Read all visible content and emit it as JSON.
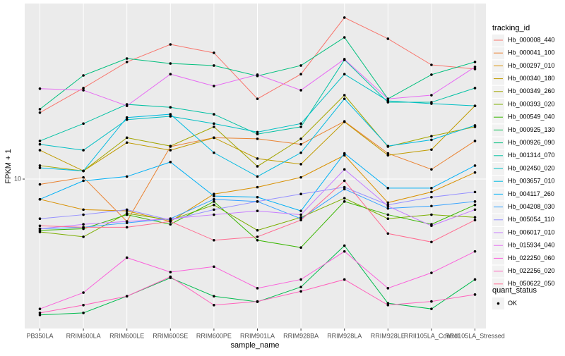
{
  "chart_data": {
    "type": "line",
    "log_y": true,
    "grid": true,
    "x_label": "sample_name",
    "y_label": "FPKM + 1",
    "legend_title": "tracking_id",
    "legend_position": "right",
    "point_legend_title": "quant_status",
    "point_legend_label": "OK",
    "point_color": "#000000",
    "categories": [
      "PB350LA",
      "RRIM600LA",
      "RRIM600LE",
      "RRIM600SE",
      "RRIM600PE",
      "RRIM901LA",
      "RRIM928BA",
      "RRIM928LA",
      "RRIM928LE",
      "RRII105LA_Control",
      "RRII105LA_Stressed"
    ],
    "ylim": [
      1.75,
      77.5
    ],
    "yticks": [
      10
    ],
    "series": [
      {
        "name": "Hb_000008_440",
        "color": "#F8766D",
        "values": [
          21.7,
          28.9,
          39.2,
          48.1,
          43.6,
          25.5,
          34.0,
          65.8,
          51.4,
          37.9,
          36.1
        ]
      },
      {
        "name": "Hb_000041_100",
        "color": "#EA8331",
        "values": [
          9.4,
          10.2,
          6.1,
          14.6,
          16.2,
          16.0,
          15.0,
          19.6,
          13.5,
          11.2,
          15.6
        ]
      },
      {
        "name": "Hb_000297_010",
        "color": "#D89000",
        "values": [
          7.9,
          7.0,
          6.9,
          6.1,
          8.4,
          9.1,
          10.2,
          13.2,
          7.6,
          8.6,
          10.8
        ]
      },
      {
        "name": "Hb_000340_180",
        "color": "#C09B00",
        "values": [
          14.0,
          11.0,
          15.3,
          14.0,
          16.2,
          12.7,
          11.9,
          19.5,
          13.2,
          14.1,
          23.5
        ]
      },
      {
        "name": "Hb_000349_260",
        "color": "#A3A500",
        "values": [
          11.7,
          11.0,
          16.2,
          14.7,
          18.4,
          11.6,
          16.0,
          26.6,
          14.6,
          16.5,
          18.4
        ]
      },
      {
        "name": "Hb_000393_020",
        "color": "#7CAE00",
        "values": [
          5.4,
          5.1,
          6.7,
          6.2,
          7.4,
          5.5,
          6.4,
          8.0,
          6.3,
          6.6,
          6.4
        ]
      },
      {
        "name": "Hb_000549_040",
        "color": "#39B600",
        "values": [
          5.5,
          5.6,
          6.6,
          5.9,
          7.7,
          4.9,
          4.5,
          7.7,
          6.6,
          5.9,
          7.4
        ]
      },
      {
        "name": "Hb_000925_130",
        "color": "#00BB4E",
        "values": [
          2.05,
          2.1,
          2.55,
          3.16,
          2.55,
          2.39,
          2.84,
          4.6,
          2.35,
          2.2,
          3.1
        ]
      },
      {
        "name": "Hb_000926_090",
        "color": "#00BF7D",
        "values": [
          22.6,
          33.5,
          40.8,
          38.5,
          37.6,
          33.3,
          37.6,
          52.2,
          25.5,
          33.8,
          39.2
        ]
      },
      {
        "name": "Hb_001314_070",
        "color": "#00C1A3",
        "values": [
          15.6,
          19.1,
          23.9,
          23.1,
          21.3,
          16.9,
          18.4,
          40.2,
          24.5,
          24.5,
          28.9
        ]
      },
      {
        "name": "Hb_002450_020",
        "color": "#00BFC4",
        "values": [
          15.0,
          14.0,
          20.0,
          20.8,
          19.1,
          17.3,
          19.1,
          34.0,
          24.9,
          24.1,
          23.5
        ]
      },
      {
        "name": "Hb_003657_010",
        "color": "#00BAE0",
        "values": [
          11.4,
          11.0,
          20.5,
          21.3,
          13.6,
          10.3,
          13.6,
          25.5,
          14.7,
          15.8,
          18.7
        ]
      },
      {
        "name": "Hb_004117_260",
        "color": "#00B0F6",
        "values": [
          7.9,
          9.8,
          10.3,
          12.2,
          8.2,
          8.1,
          6.9,
          13.5,
          9.0,
          9.0,
          11.7
        ]
      },
      {
        "name": "Hb_004208_030",
        "color": "#35A2FF",
        "values": [
          5.6,
          5.7,
          6.0,
          6.3,
          7.9,
          7.7,
          6.3,
          8.9,
          7.1,
          7.3,
          7.7
        ]
      },
      {
        "name": "Hb_005054_110",
        "color": "#9590FF",
        "values": [
          6.3,
          6.6,
          7.0,
          6.2,
          7.0,
          7.7,
          8.4,
          9.1,
          7.4,
          8.1,
          8.6
        ]
      },
      {
        "name": "Hb_006017_010",
        "color": "#C77CFF",
        "values": [
          5.6,
          5.9,
          6.1,
          6.3,
          6.6,
          6.9,
          6.6,
          11.2,
          7.3,
          5.8,
          7.0
        ]
      },
      {
        "name": "Hb_015934_040",
        "color": "#E76BF3",
        "values": [
          28.7,
          28.2,
          23.5,
          34.0,
          29.6,
          33.8,
          28.2,
          40.5,
          25.5,
          26.6,
          37.0
        ]
      },
      {
        "name": "Hb_022250_060",
        "color": "#FA62DB",
        "values": [
          2.2,
          2.66,
          4.0,
          3.38,
          3.6,
          2.8,
          3.1,
          4.3,
          2.8,
          3.35,
          4.3
        ]
      },
      {
        "name": "Hb_022256_020",
        "color": "#FF62BC",
        "values": [
          2.1,
          2.3,
          2.55,
          3.2,
          2.3,
          2.4,
          2.7,
          3.1,
          2.3,
          2.4,
          2.6
        ]
      },
      {
        "name": "Hb_050622_050",
        "color": "#FF6C91",
        "values": [
          5.8,
          5.7,
          5.7,
          6.1,
          4.9,
          5.1,
          6.2,
          9.8,
          5.3,
          4.8,
          6.2
        ]
      }
    ]
  }
}
